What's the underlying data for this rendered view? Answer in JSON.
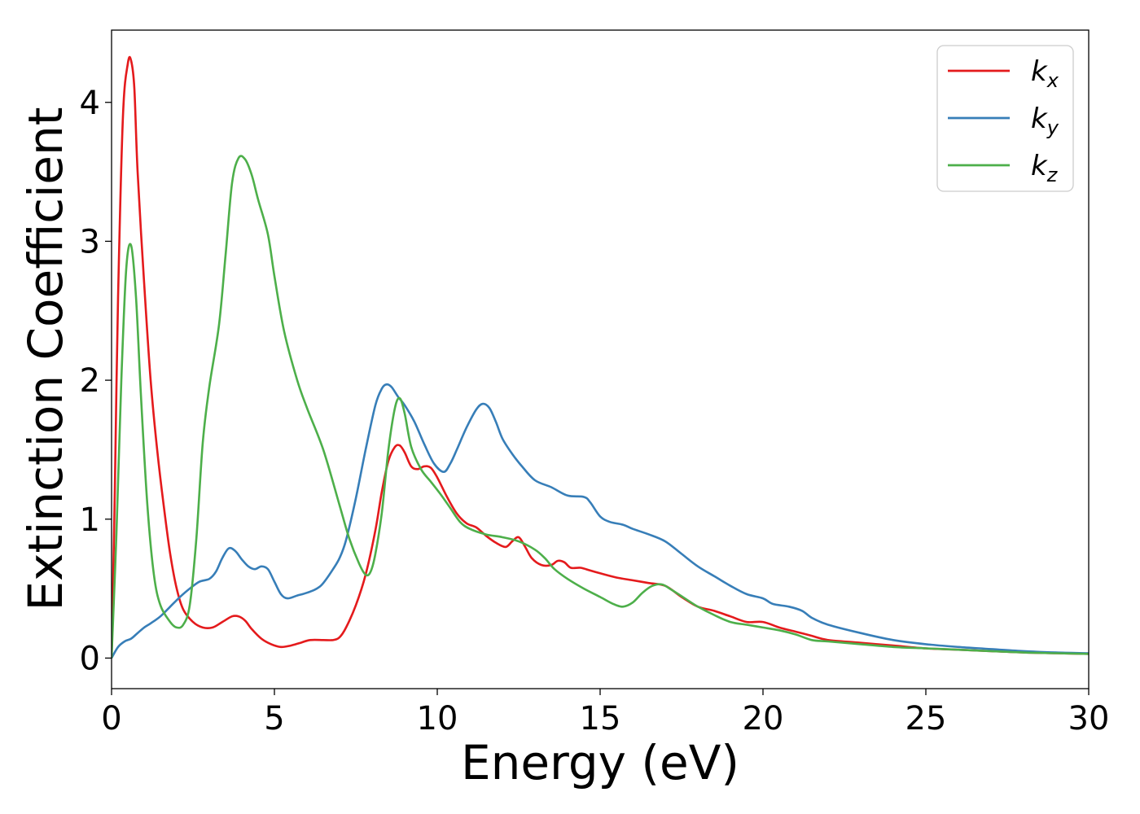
{
  "chart_data": {
    "type": "line",
    "xlabel": "Energy (eV)",
    "ylabel": "Extinction Coefficient",
    "xlim": [
      0,
      30
    ],
    "ylim": [
      -0.22,
      4.52
    ],
    "xticks": [
      "0",
      "5",
      "10",
      "15",
      "20",
      "25",
      "30"
    ],
    "yticks": [
      "0",
      "1",
      "2",
      "3",
      "4"
    ],
    "grid": false,
    "legend_position": "top-right",
    "series": [
      {
        "name": "k",
        "subscript": "x",
        "color": "#e41a1c",
        "points": [
          [
            0,
            0
          ],
          [
            0.1,
            1.2
          ],
          [
            0.2,
            2.6
          ],
          [
            0.35,
            3.9
          ],
          [
            0.5,
            4.28
          ],
          [
            0.6,
            4.3
          ],
          [
            0.7,
            4.1
          ],
          [
            0.8,
            3.5
          ],
          [
            1.0,
            2.7
          ],
          [
            1.2,
            2.0
          ],
          [
            1.4,
            1.5
          ],
          [
            1.6,
            1.1
          ],
          [
            1.8,
            0.75
          ],
          [
            2.0,
            0.5
          ],
          [
            2.2,
            0.35
          ],
          [
            2.5,
            0.26
          ],
          [
            2.8,
            0.22
          ],
          [
            3.1,
            0.22
          ],
          [
            3.4,
            0.26
          ],
          [
            3.7,
            0.3
          ],
          [
            3.9,
            0.3
          ],
          [
            4.1,
            0.27
          ],
          [
            4.3,
            0.21
          ],
          [
            4.6,
            0.14
          ],
          [
            4.9,
            0.1
          ],
          [
            5.2,
            0.08
          ],
          [
            5.5,
            0.09
          ],
          [
            5.8,
            0.11
          ],
          [
            6.1,
            0.13
          ],
          [
            6.5,
            0.13
          ],
          [
            6.8,
            0.13
          ],
          [
            7.0,
            0.15
          ],
          [
            7.2,
            0.22
          ],
          [
            7.5,
            0.38
          ],
          [
            7.8,
            0.6
          ],
          [
            8.1,
            0.92
          ],
          [
            8.3,
            1.2
          ],
          [
            8.5,
            1.42
          ],
          [
            8.7,
            1.52
          ],
          [
            8.85,
            1.53
          ],
          [
            9.0,
            1.48
          ],
          [
            9.2,
            1.38
          ],
          [
            9.4,
            1.36
          ],
          [
            9.6,
            1.38
          ],
          [
            9.8,
            1.37
          ],
          [
            10.0,
            1.3
          ],
          [
            10.3,
            1.16
          ],
          [
            10.6,
            1.04
          ],
          [
            10.9,
            0.97
          ],
          [
            11.2,
            0.94
          ],
          [
            11.5,
            0.88
          ],
          [
            11.8,
            0.83
          ],
          [
            12.1,
            0.8
          ],
          [
            12.3,
            0.84
          ],
          [
            12.5,
            0.87
          ],
          [
            12.7,
            0.8
          ],
          [
            12.9,
            0.72
          ],
          [
            13.2,
            0.67
          ],
          [
            13.5,
            0.67
          ],
          [
            13.7,
            0.7
          ],
          [
            13.9,
            0.69
          ],
          [
            14.1,
            0.65
          ],
          [
            14.4,
            0.65
          ],
          [
            14.7,
            0.63
          ],
          [
            15.0,
            0.61
          ],
          [
            15.5,
            0.58
          ],
          [
            16.0,
            0.56
          ],
          [
            16.5,
            0.54
          ],
          [
            17.0,
            0.52
          ],
          [
            17.5,
            0.44
          ],
          [
            18.0,
            0.37
          ],
          [
            18.5,
            0.34
          ],
          [
            19.0,
            0.3
          ],
          [
            19.5,
            0.26
          ],
          [
            20.0,
            0.26
          ],
          [
            20.5,
            0.22
          ],
          [
            21.0,
            0.19
          ],
          [
            21.5,
            0.16
          ],
          [
            22.0,
            0.13
          ],
          [
            23.0,
            0.11
          ],
          [
            24.0,
            0.09
          ],
          [
            25.0,
            0.07
          ],
          [
            26.0,
            0.06
          ],
          [
            27.0,
            0.05
          ],
          [
            28.0,
            0.04
          ],
          [
            29.0,
            0.035
          ],
          [
            30.0,
            0.03
          ]
        ]
      },
      {
        "name": "k",
        "subscript": "y",
        "color": "#377eb8",
        "points": [
          [
            0,
            0
          ],
          [
            0.2,
            0.08
          ],
          [
            0.4,
            0.12
          ],
          [
            0.6,
            0.14
          ],
          [
            0.8,
            0.18
          ],
          [
            1.0,
            0.22
          ],
          [
            1.2,
            0.25
          ],
          [
            1.5,
            0.3
          ],
          [
            1.8,
            0.37
          ],
          [
            2.1,
            0.44
          ],
          [
            2.4,
            0.5
          ],
          [
            2.7,
            0.55
          ],
          [
            3.0,
            0.57
          ],
          [
            3.2,
            0.62
          ],
          [
            3.4,
            0.72
          ],
          [
            3.6,
            0.79
          ],
          [
            3.8,
            0.77
          ],
          [
            4.0,
            0.71
          ],
          [
            4.2,
            0.66
          ],
          [
            4.4,
            0.64
          ],
          [
            4.6,
            0.66
          ],
          [
            4.8,
            0.64
          ],
          [
            5.0,
            0.55
          ],
          [
            5.2,
            0.46
          ],
          [
            5.4,
            0.43
          ],
          [
            5.7,
            0.45
          ],
          [
            6.0,
            0.47
          ],
          [
            6.3,
            0.5
          ],
          [
            6.5,
            0.54
          ],
          [
            6.8,
            0.64
          ],
          [
            7.0,
            0.72
          ],
          [
            7.2,
            0.85
          ],
          [
            7.5,
            1.15
          ],
          [
            7.8,
            1.5
          ],
          [
            8.1,
            1.82
          ],
          [
            8.3,
            1.94
          ],
          [
            8.45,
            1.97
          ],
          [
            8.6,
            1.95
          ],
          [
            8.8,
            1.88
          ],
          [
            9.0,
            1.82
          ],
          [
            9.3,
            1.7
          ],
          [
            9.6,
            1.54
          ],
          [
            9.9,
            1.4
          ],
          [
            10.2,
            1.34
          ],
          [
            10.4,
            1.4
          ],
          [
            10.6,
            1.5
          ],
          [
            10.9,
            1.66
          ],
          [
            11.2,
            1.79
          ],
          [
            11.4,
            1.83
          ],
          [
            11.6,
            1.8
          ],
          [
            11.8,
            1.7
          ],
          [
            12.0,
            1.58
          ],
          [
            12.3,
            1.47
          ],
          [
            12.6,
            1.38
          ],
          [
            13.0,
            1.28
          ],
          [
            13.5,
            1.23
          ],
          [
            14.0,
            1.17
          ],
          [
            14.5,
            1.16
          ],
          [
            14.7,
            1.12
          ],
          [
            15.0,
            1.02
          ],
          [
            15.3,
            0.98
          ],
          [
            15.7,
            0.96
          ],
          [
            16.0,
            0.93
          ],
          [
            16.5,
            0.89
          ],
          [
            17.0,
            0.84
          ],
          [
            17.5,
            0.75
          ],
          [
            18.0,
            0.66
          ],
          [
            18.5,
            0.59
          ],
          [
            19.0,
            0.52
          ],
          [
            19.5,
            0.46
          ],
          [
            20.0,
            0.43
          ],
          [
            20.3,
            0.39
          ],
          [
            20.8,
            0.37
          ],
          [
            21.2,
            0.34
          ],
          [
            21.5,
            0.29
          ],
          [
            22.0,
            0.24
          ],
          [
            23.0,
            0.18
          ],
          [
            24.0,
            0.13
          ],
          [
            25.0,
            0.1
          ],
          [
            26.0,
            0.08
          ],
          [
            27.0,
            0.065
          ],
          [
            28.0,
            0.05
          ],
          [
            29.0,
            0.04
          ],
          [
            30.0,
            0.035
          ]
        ]
      },
      {
        "name": "k",
        "subscript": "z",
        "color": "#4daf4a",
        "points": [
          [
            0,
            0
          ],
          [
            0.15,
            0.9
          ],
          [
            0.3,
            2.0
          ],
          [
            0.45,
            2.8
          ],
          [
            0.6,
            2.97
          ],
          [
            0.75,
            2.6
          ],
          [
            0.9,
            1.9
          ],
          [
            1.1,
            1.1
          ],
          [
            1.3,
            0.6
          ],
          [
            1.5,
            0.38
          ],
          [
            1.8,
            0.26
          ],
          [
            2.0,
            0.22
          ],
          [
            2.2,
            0.24
          ],
          [
            2.4,
            0.38
          ],
          [
            2.6,
            0.85
          ],
          [
            2.8,
            1.55
          ],
          [
            3.0,
            1.95
          ],
          [
            3.3,
            2.4
          ],
          [
            3.5,
            2.9
          ],
          [
            3.7,
            3.42
          ],
          [
            3.9,
            3.6
          ],
          [
            4.1,
            3.59
          ],
          [
            4.3,
            3.48
          ],
          [
            4.5,
            3.3
          ],
          [
            4.8,
            3.05
          ],
          [
            5.0,
            2.75
          ],
          [
            5.3,
            2.35
          ],
          [
            5.7,
            2.0
          ],
          [
            6.0,
            1.8
          ],
          [
            6.5,
            1.5
          ],
          [
            7.0,
            1.1
          ],
          [
            7.3,
            0.86
          ],
          [
            7.6,
            0.68
          ],
          [
            7.8,
            0.6
          ],
          [
            7.95,
            0.62
          ],
          [
            8.1,
            0.75
          ],
          [
            8.3,
            1.05
          ],
          [
            8.5,
            1.5
          ],
          [
            8.7,
            1.8
          ],
          [
            8.85,
            1.87
          ],
          [
            9.0,
            1.76
          ],
          [
            9.2,
            1.52
          ],
          [
            9.5,
            1.36
          ],
          [
            9.8,
            1.27
          ],
          [
            10.1,
            1.18
          ],
          [
            10.4,
            1.08
          ],
          [
            10.7,
            0.98
          ],
          [
            11.0,
            0.93
          ],
          [
            11.5,
            0.89
          ],
          [
            12.0,
            0.87
          ],
          [
            12.5,
            0.84
          ],
          [
            13.0,
            0.78
          ],
          [
            13.3,
            0.72
          ],
          [
            13.6,
            0.64
          ],
          [
            14.0,
            0.57
          ],
          [
            14.5,
            0.5
          ],
          [
            15.0,
            0.44
          ],
          [
            15.4,
            0.39
          ],
          [
            15.7,
            0.37
          ],
          [
            16.0,
            0.4
          ],
          [
            16.3,
            0.47
          ],
          [
            16.6,
            0.52
          ],
          [
            16.9,
            0.53
          ],
          [
            17.2,
            0.49
          ],
          [
            17.6,
            0.43
          ],
          [
            18.0,
            0.37
          ],
          [
            18.5,
            0.31
          ],
          [
            19.0,
            0.26
          ],
          [
            19.5,
            0.24
          ],
          [
            20.0,
            0.22
          ],
          [
            20.5,
            0.2
          ],
          [
            21.0,
            0.17
          ],
          [
            21.5,
            0.13
          ],
          [
            22.0,
            0.12
          ],
          [
            23.0,
            0.1
          ],
          [
            24.0,
            0.08
          ],
          [
            25.0,
            0.07
          ],
          [
            26.0,
            0.06
          ],
          [
            27.0,
            0.05
          ],
          [
            28.0,
            0.04
          ],
          [
            29.0,
            0.035
          ],
          [
            30.0,
            0.03
          ]
        ]
      }
    ]
  }
}
